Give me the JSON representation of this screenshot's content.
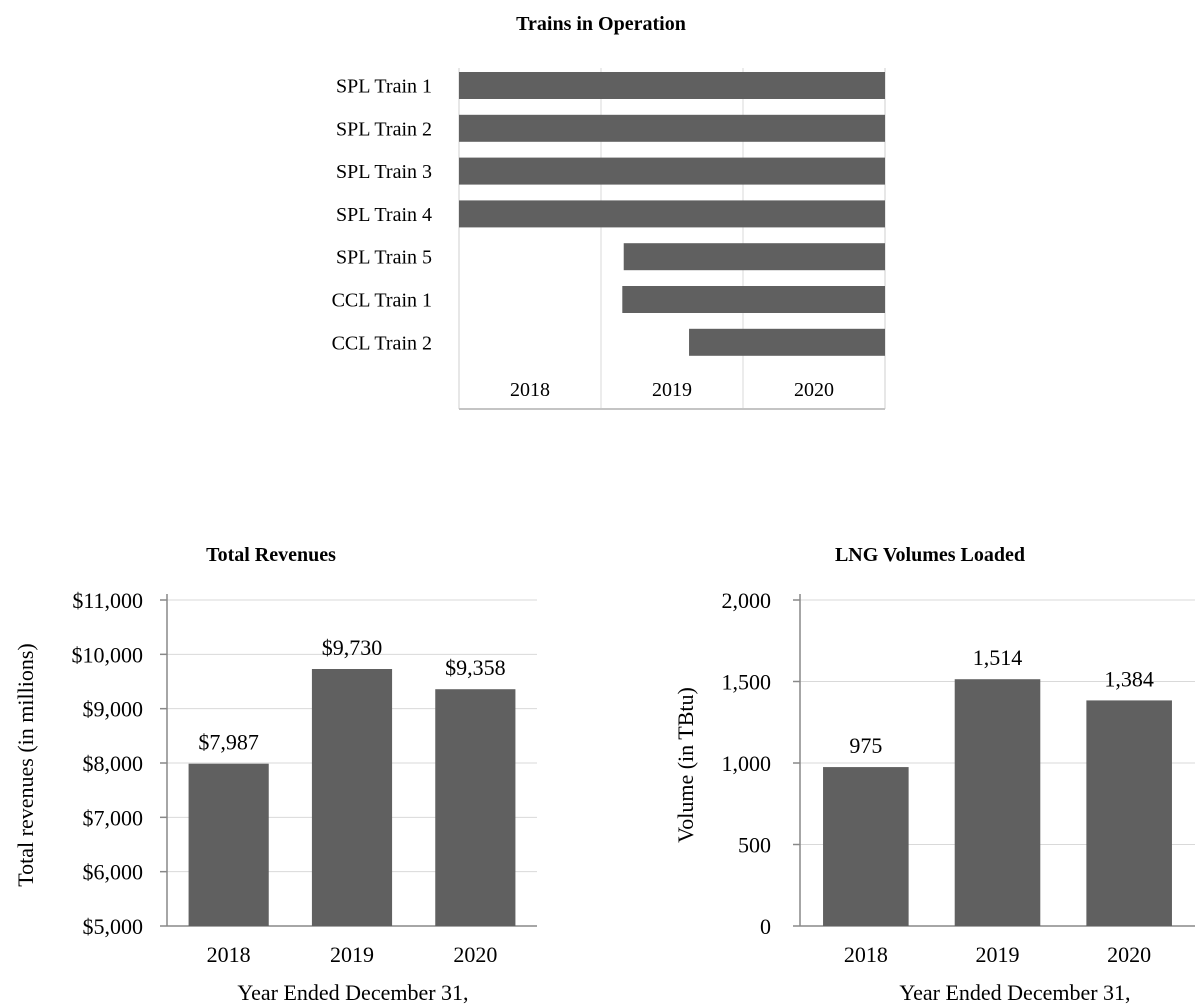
{
  "chart_data": [
    {
      "type": "bar",
      "orientation": "horizontal",
      "title": "Trains in Operation",
      "categories": [
        "SPL Train 1",
        "SPL Train 2",
        "SPL Train 3",
        "SPL Train 4",
        "SPL Train 5",
        "CCL Train 1",
        "CCL Train 2"
      ],
      "x_ticks": [
        "2018",
        "2019",
        "2020"
      ],
      "xlim": [
        2018,
        2021
      ],
      "series": [
        {
          "start": [
            2018,
            2018,
            2018,
            2018,
            2019.16,
            2019.15,
            2019.62
          ],
          "end": [
            2021,
            2021,
            2021,
            2021,
            2021,
            2021,
            2021
          ]
        }
      ],
      "grid": true,
      "color": "#606060"
    },
    {
      "type": "bar",
      "title": "Total Revenues",
      "categories": [
        "2018",
        "2019",
        "2020"
      ],
      "values": [
        7987,
        9730,
        9358
      ],
      "data_labels": [
        "$7,987",
        "$9,730",
        "$9,358"
      ],
      "ylabel": "Total revenues (in millions)",
      "xlabel": "Year Ended December 31,",
      "ylim": [
        5000,
        11000
      ],
      "y_ticks": [
        "$5,000",
        "$6,000",
        "$7,000",
        "$8,000",
        "$9,000",
        "$10,000",
        "$11,000"
      ],
      "grid": true,
      "color": "#606060"
    },
    {
      "type": "bar",
      "title": "LNG Volumes Loaded",
      "categories": [
        "2018",
        "2019",
        "2020"
      ],
      "values": [
        975,
        1514,
        1384
      ],
      "data_labels": [
        "975",
        "1,514",
        "1,384"
      ],
      "ylabel": "Volume (in TBtu)",
      "xlabel": "Year Ended December 31,",
      "ylim": [
        0,
        2000
      ],
      "y_ticks": [
        "0",
        "500",
        "1,000",
        "1,500",
        "2,000"
      ],
      "grid": true,
      "color": "#606060"
    }
  ]
}
